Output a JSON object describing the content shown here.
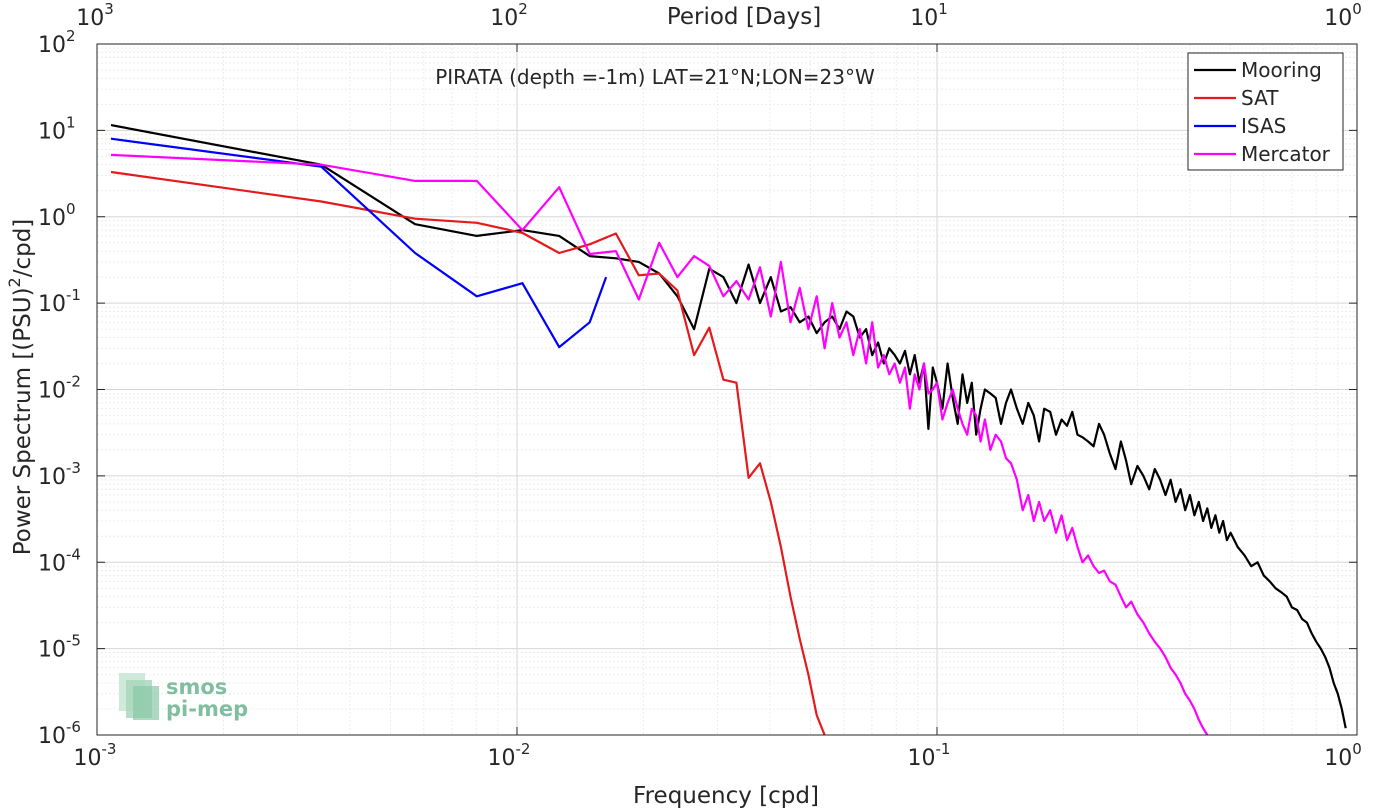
{
  "chart_data": {
    "type": "line",
    "title": "PIRATA (depth =-1m) LAT=21°N;LON=23°W",
    "xlabel": "Frequency [cpd]",
    "ylabel": "Power Spectrum [(PSU)²/cpd]",
    "top_xlabel": "Period [Days]",
    "x_scale": "log",
    "y_scale": "log",
    "xlim": [
      0.001,
      1
    ],
    "ylim": [
      1e-06,
      100
    ],
    "grid": true,
    "legend_position": "top-right",
    "x_ticks": [
      {
        "value": 0.001,
        "base": "10",
        "exp": "-3"
      },
      {
        "value": 0.01,
        "base": "10",
        "exp": "-2"
      },
      {
        "value": 0.1,
        "base": "10",
        "exp": "-1"
      },
      {
        "value": 1,
        "base": "10",
        "exp": "0"
      }
    ],
    "top_ticks": [
      {
        "value": 0.001,
        "base": "10",
        "exp": "3"
      },
      {
        "value": 0.01,
        "base": "10",
        "exp": "2"
      },
      {
        "value": 0.1,
        "base": "10",
        "exp": "1"
      },
      {
        "value": 1,
        "base": "10",
        "exp": "0"
      }
    ],
    "y_ticks": [
      {
        "value": 100,
        "base": "10",
        "exp": "2"
      },
      {
        "value": 10,
        "base": "10",
        "exp": "1"
      },
      {
        "value": 1,
        "base": "10",
        "exp": "0"
      },
      {
        "value": 0.1,
        "base": "10",
        "exp": "-1"
      },
      {
        "value": 0.01,
        "base": "10",
        "exp": "-2"
      },
      {
        "value": 0.001,
        "base": "10",
        "exp": "-3"
      },
      {
        "value": 0.0001,
        "base": "10",
        "exp": "-4"
      },
      {
        "value": 1e-05,
        "base": "10",
        "exp": "-5"
      },
      {
        "value": 1e-06,
        "base": "10",
        "exp": "-6"
      }
    ],
    "series": [
      {
        "name": "Mooring",
        "color": "#000000",
        "x": [
          0.00108,
          0.00342,
          0.00572,
          0.00802,
          0.0103,
          0.0126,
          0.0149,
          0.0172,
          0.0195,
          0.0218,
          0.0241,
          0.0264,
          0.0287,
          0.031,
          0.0333,
          0.0356,
          0.0379,
          0.0402,
          0.0425,
          0.0448,
          0.0471,
          0.0494,
          0.0517,
          0.054,
          0.0563,
          0.0586,
          0.0609,
          0.0632,
          0.0655,
          0.0678,
          0.0701,
          0.0724,
          0.0747,
          0.077,
          0.0793,
          0.0816,
          0.0839,
          0.0862,
          0.0885,
          0.0908,
          0.0931,
          0.0954,
          0.0977,
          0.1,
          0.103,
          0.106,
          0.109,
          0.112,
          0.115,
          0.118,
          0.121,
          0.124,
          0.127,
          0.13,
          0.134,
          0.138,
          0.142,
          0.146,
          0.15,
          0.155,
          0.16,
          0.165,
          0.17,
          0.175,
          0.18,
          0.186,
          0.192,
          0.198,
          0.204,
          0.21,
          0.216,
          0.222,
          0.229,
          0.236,
          0.243,
          0.25,
          0.258,
          0.266,
          0.274,
          0.282,
          0.29,
          0.3,
          0.31,
          0.32,
          0.33,
          0.34,
          0.35,
          0.36,
          0.37,
          0.38,
          0.39,
          0.4,
          0.41,
          0.42,
          0.43,
          0.44,
          0.45,
          0.46,
          0.47,
          0.48,
          0.49,
          0.5,
          0.52,
          0.54,
          0.56,
          0.58,
          0.6,
          0.62,
          0.64,
          0.66,
          0.68,
          0.7,
          0.72,
          0.74,
          0.76,
          0.78,
          0.8,
          0.82,
          0.84,
          0.86,
          0.88,
          0.9,
          0.92,
          0.94
        ],
        "y": [
          11.5,
          4.0,
          0.82,
          0.6,
          0.7,
          0.6,
          0.35,
          0.33,
          0.3,
          0.22,
          0.12,
          0.05,
          0.25,
          0.2,
          0.1,
          0.28,
          0.1,
          0.2,
          0.08,
          0.09,
          0.06,
          0.07,
          0.045,
          0.06,
          0.07,
          0.05,
          0.08,
          0.07,
          0.04,
          0.05,
          0.025,
          0.035,
          0.02,
          0.03,
          0.025,
          0.02,
          0.028,
          0.015,
          0.025,
          0.012,
          0.02,
          0.0035,
          0.018,
          0.012,
          0.006,
          0.02,
          0.008,
          0.004,
          0.015,
          0.007,
          0.012,
          0.003,
          0.006,
          0.01,
          0.009,
          0.008,
          0.004,
          0.007,
          0.01,
          0.006,
          0.004,
          0.007,
          0.005,
          0.0025,
          0.006,
          0.0055,
          0.003,
          0.0045,
          0.0038,
          0.0055,
          0.003,
          0.0028,
          0.0025,
          0.0022,
          0.004,
          0.003,
          0.0018,
          0.0012,
          0.0025,
          0.0015,
          0.0008,
          0.0013,
          0.001,
          0.0007,
          0.0012,
          0.0009,
          0.0006,
          0.0009,
          0.0005,
          0.0007,
          0.0004,
          0.0006,
          0.00035,
          0.0005,
          0.0003,
          0.00042,
          0.00025,
          0.00035,
          0.00022,
          0.0003,
          0.00018,
          0.00022,
          0.00015,
          0.00012,
          9e-05,
          0.0001,
          7e-05,
          6e-05,
          5e-05,
          4.5e-05,
          4e-05,
          3e-05,
          2.8e-05,
          2.2e-05,
          2e-05,
          1.5e-05,
          1.2e-05,
          1e-05,
          8e-06,
          6e-06,
          4e-06,
          3e-06,
          2e-06,
          1.2e-06
        ]
      },
      {
        "name": "SAT",
        "color": "#e41a1c",
        "x": [
          0.00108,
          0.00342,
          0.00572,
          0.00802,
          0.0103,
          0.0126,
          0.0149,
          0.0172,
          0.0195,
          0.0218,
          0.0241,
          0.0264,
          0.0287,
          0.031,
          0.0333,
          0.0356,
          0.0379,
          0.0402,
          0.0425,
          0.0448,
          0.0471,
          0.0494,
          0.0517,
          0.054
        ],
        "y": [
          3.3,
          1.5,
          0.95,
          0.85,
          0.65,
          0.38,
          0.48,
          0.64,
          0.21,
          0.22,
          0.14,
          0.025,
          0.052,
          0.013,
          0.012,
          0.00095,
          0.0014,
          0.0005,
          0.00015,
          4e-05,
          1.3e-05,
          5e-06,
          1.7e-06,
          1e-06
        ]
      },
      {
        "name": "ISAS",
        "color": "#0000ff",
        "x": [
          0.00108,
          0.00342,
          0.00572,
          0.00802,
          0.0103,
          0.0126,
          0.0149,
          0.0163
        ],
        "y": [
          8.0,
          3.8,
          0.38,
          0.12,
          0.17,
          0.031,
          0.06,
          0.2
        ]
      },
      {
        "name": "Mercator",
        "color": "#ff00ff",
        "x": [
          0.00108,
          0.00342,
          0.00572,
          0.00802,
          0.0103,
          0.0126,
          0.0149,
          0.0172,
          0.0195,
          0.0218,
          0.0241,
          0.0264,
          0.0287,
          0.031,
          0.0333,
          0.0356,
          0.0379,
          0.0402,
          0.0425,
          0.0448,
          0.0471,
          0.0494,
          0.0517,
          0.054,
          0.0563,
          0.0586,
          0.0609,
          0.0632,
          0.0655,
          0.0678,
          0.0701,
          0.0724,
          0.0747,
          0.077,
          0.0793,
          0.0816,
          0.0839,
          0.0862,
          0.0885,
          0.0908,
          0.0931,
          0.0954,
          0.0977,
          0.1,
          0.103,
          0.106,
          0.109,
          0.112,
          0.115,
          0.118,
          0.121,
          0.124,
          0.127,
          0.13,
          0.134,
          0.138,
          0.142,
          0.146,
          0.15,
          0.155,
          0.16,
          0.165,
          0.17,
          0.175,
          0.18,
          0.186,
          0.192,
          0.198,
          0.204,
          0.21,
          0.216,
          0.222,
          0.229,
          0.236,
          0.243,
          0.25,
          0.258,
          0.266,
          0.274,
          0.282,
          0.29,
          0.3,
          0.31,
          0.32,
          0.33,
          0.34,
          0.35,
          0.36,
          0.37,
          0.38,
          0.39,
          0.4,
          0.41,
          0.42,
          0.43,
          0.44
        ],
        "y": [
          5.2,
          4.0,
          2.6,
          2.6,
          0.7,
          2.2,
          0.37,
          0.4,
          0.11,
          0.5,
          0.2,
          0.35,
          0.27,
          0.12,
          0.18,
          0.11,
          0.26,
          0.07,
          0.3,
          0.06,
          0.15,
          0.05,
          0.12,
          0.03,
          0.1,
          0.04,
          0.06,
          0.025,
          0.05,
          0.02,
          0.06,
          0.018,
          0.025,
          0.015,
          0.02,
          0.012,
          0.018,
          0.006,
          0.015,
          0.01,
          0.02,
          0.009,
          0.01,
          0.012,
          0.0045,
          0.007,
          0.01,
          0.006,
          0.004,
          0.003,
          0.006,
          0.005,
          0.0025,
          0.0045,
          0.002,
          0.003,
          0.0025,
          0.0016,
          0.0014,
          0.0009,
          0.0004,
          0.0006,
          0.0003,
          0.0005,
          0.0003,
          0.0004,
          0.00022,
          0.00035,
          0.00018,
          0.00025,
          0.00015,
          0.0001,
          0.00012,
          9e-05,
          7.5e-05,
          8e-05,
          6e-05,
          5.5e-05,
          4e-05,
          3e-05,
          3.5e-05,
          2.5e-05,
          2e-05,
          1.5e-05,
          1.2e-05,
          1e-05,
          8e-06,
          6e-06,
          5e-06,
          4e-06,
          3e-06,
          2.5e-06,
          2e-06,
          1.5e-06,
          1.2e-06,
          1e-06
        ]
      }
    ]
  },
  "watermark": {
    "line1": "smos",
    "line2": "pi-mep"
  }
}
